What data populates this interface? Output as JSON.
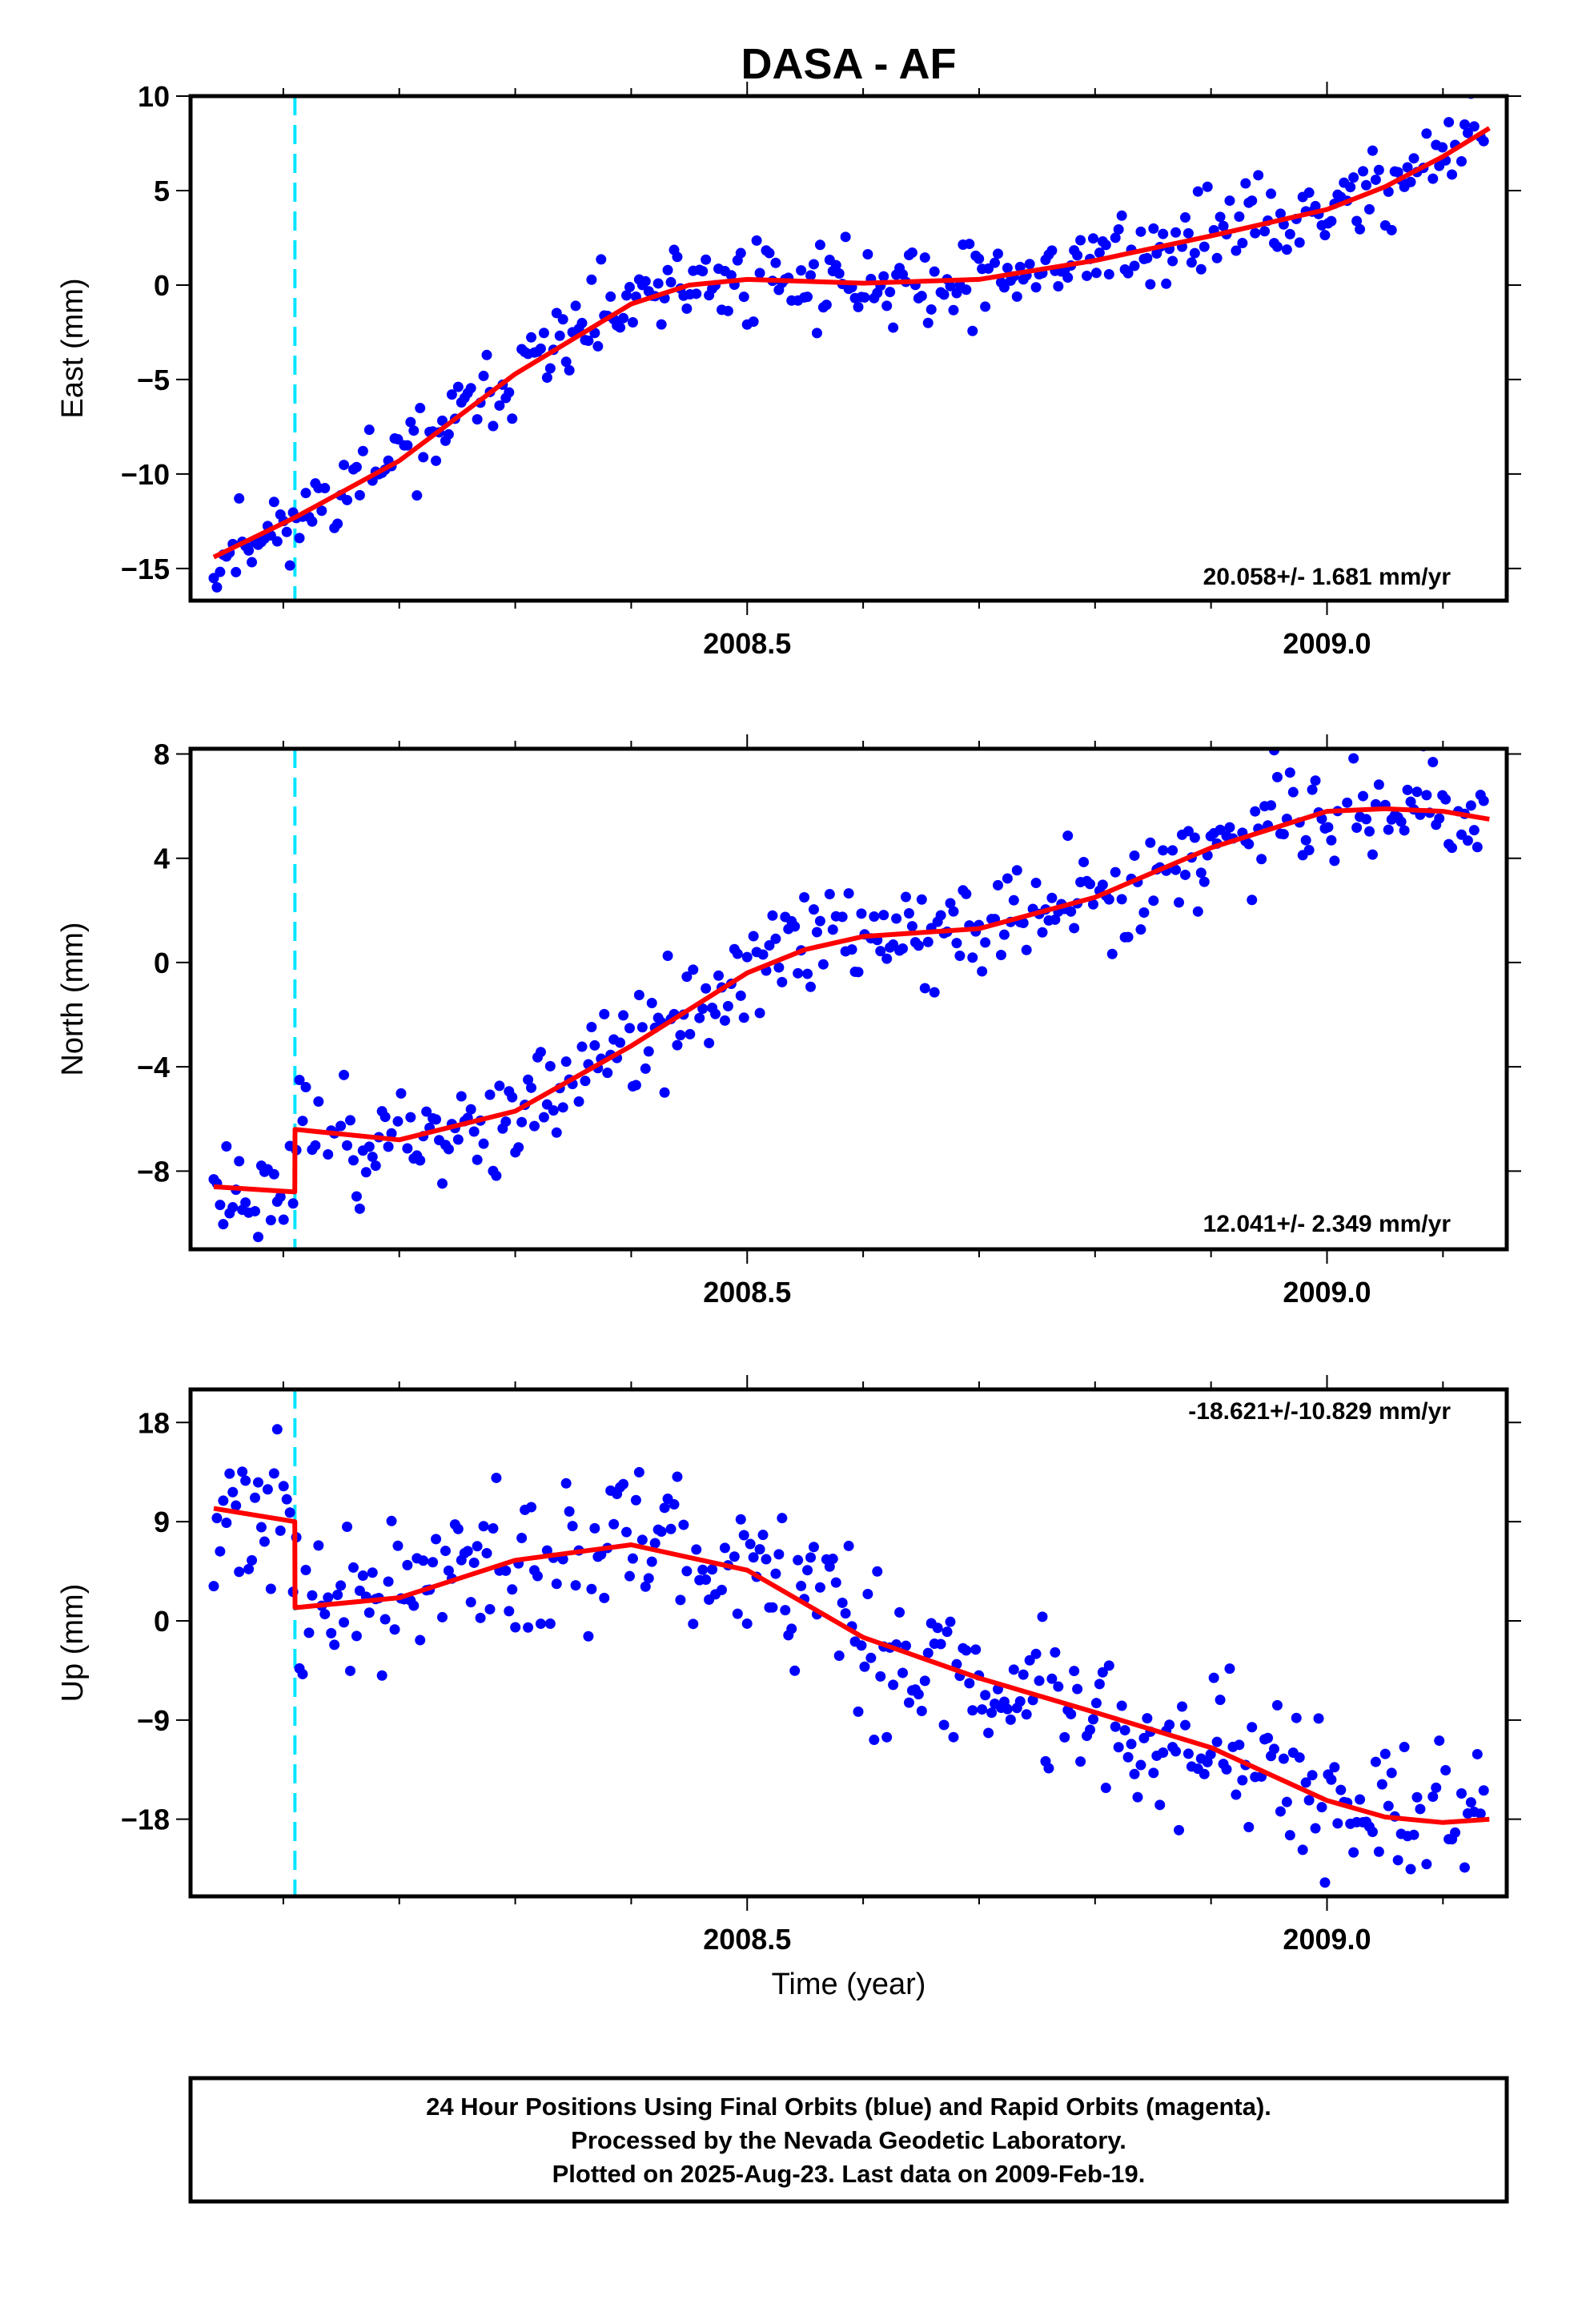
{
  "title": "DASA - AF",
  "xlabel": "Time (year)",
  "footer_lines": [
    "24 Hour Positions Using Final Orbits (blue) and Rapid Orbits (magenta).",
    "Processed by the Nevada Geodetic Laboratory.",
    "Plotted on 2025-Aug-23. Last data on 2009-Feb-19."
  ],
  "colors": {
    "data": "#0000ff",
    "model": "#ff0000",
    "event_line": "#00e5ff",
    "frame": "#000000"
  },
  "chart_data": [
    {
      "type": "scatter",
      "ylabel": "East (mm)",
      "rate_label": "20.058+/- 1.681 mm/yr",
      "xlim": [
        2008.02,
        2009.155
      ],
      "ylim": [
        -16.7,
        10.0
      ],
      "yticks": [
        -15,
        -10,
        -5,
        0,
        5,
        10
      ],
      "yticklabels": [
        "−15",
        "−10",
        "−5",
        "0",
        "5",
        "10"
      ],
      "xticks_labeled": [
        2008.5,
        2009.0
      ],
      "xticklabels": [
        "2008.5",
        "2009.0"
      ],
      "event_x": 2008.11,
      "model_x": [
        2008.04,
        2008.11,
        2008.2,
        2008.3,
        2008.4,
        2008.45,
        2008.5,
        2008.6,
        2008.7,
        2008.8,
        2008.9,
        2009.0,
        2009.05,
        2009.1,
        2009.14
      ],
      "model_y": [
        -14.4,
        -12.3,
        -9.3,
        -4.7,
        -1.0,
        0.0,
        0.3,
        0.1,
        0.3,
        1.3,
        2.6,
        4.0,
        5.2,
        6.8,
        8.3
      ],
      "noise_sd": 1.1,
      "seed": 11
    },
    {
      "type": "scatter",
      "ylabel": "North (mm)",
      "rate_label": "12.041+/- 2.349 mm/yr",
      "xlim": [
        2008.02,
        2009.155
      ],
      "ylim": [
        -11.0,
        8.2
      ],
      "yticks": [
        -8,
        -4,
        0,
        4,
        8
      ],
      "yticklabels": [
        "−8",
        "−4",
        "0",
        "4",
        "8"
      ],
      "xticks_labeled": [
        2008.5,
        2009.0
      ],
      "xticklabels": [
        "2008.5",
        "2009.0"
      ],
      "event_x": 2008.11,
      "model_x": [
        2008.04,
        2008.1099,
        2008.1101,
        2008.2,
        2008.3,
        2008.4,
        2008.5,
        2008.55,
        2008.6,
        2008.7,
        2008.8,
        2008.9,
        2009.0,
        2009.05,
        2009.1,
        2009.14
      ],
      "model_y": [
        -8.6,
        -8.8,
        -6.4,
        -6.8,
        -5.7,
        -3.2,
        -0.4,
        0.5,
        1.0,
        1.3,
        2.5,
        4.4,
        5.8,
        5.9,
        5.8,
        5.5
      ],
      "noise_sd": 1.0,
      "seed": 23
    },
    {
      "type": "scatter",
      "ylabel": "Up (mm)",
      "rate_label": "-18.621+/-10.829 mm/yr",
      "xlim": [
        2008.02,
        2009.155
      ],
      "ylim": [
        -25.0,
        21.0
      ],
      "yticks": [
        -18,
        -9,
        0,
        9,
        18
      ],
      "yticklabels": [
        "−18",
        "−9",
        "0",
        "9",
        "18"
      ],
      "xticks_labeled": [
        2008.5,
        2009.0
      ],
      "xticklabels": [
        "2008.5",
        "2009.0"
      ],
      "event_x": 2008.11,
      "model_x": [
        2008.04,
        2008.1099,
        2008.1101,
        2008.2,
        2008.3,
        2008.4,
        2008.5,
        2008.6,
        2008.7,
        2008.8,
        2008.9,
        2009.0,
        2009.05,
        2009.1,
        2009.14
      ],
      "model_y": [
        10.2,
        9.0,
        1.2,
        2.1,
        5.5,
        6.9,
        4.6,
        -1.5,
        -5.2,
        -8.3,
        -11.5,
        -16.3,
        -17.8,
        -18.3,
        -18.0
      ],
      "noise_sd": 3.6,
      "seed": 37
    }
  ]
}
